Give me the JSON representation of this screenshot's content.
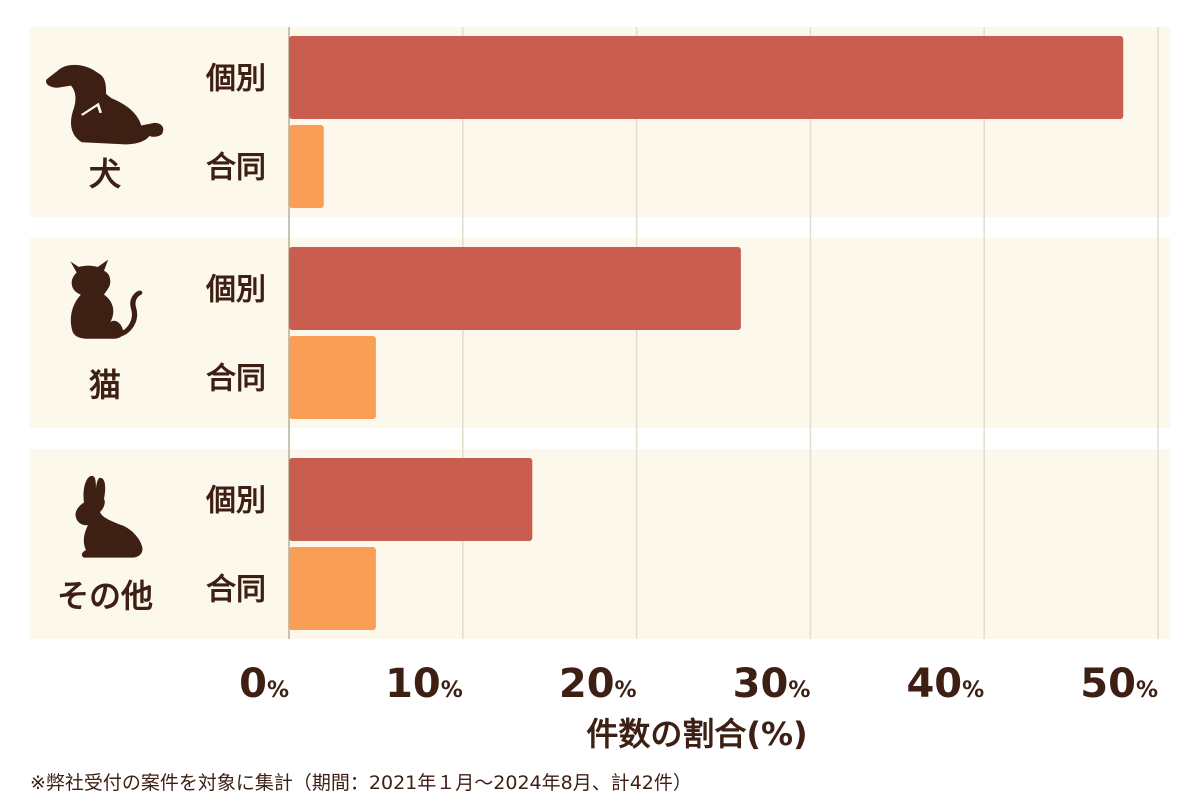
{
  "chart_data": {
    "type": "bar",
    "orientation": "horizontal",
    "xlabel": "件数の割合(%)",
    "x_ticks": [
      "0",
      "10",
      "20",
      "30",
      "40",
      "50"
    ],
    "x_tick_unit": "%",
    "xlim": [
      0,
      50
    ],
    "grid": true,
    "groups": [
      {
        "label": "犬",
        "icon": "dog-icon",
        "bars": [
          {
            "label": "個別",
            "value": 48
          },
          {
            "label": "合同",
            "value": 2
          }
        ]
      },
      {
        "label": "猫",
        "icon": "cat-icon",
        "bars": [
          {
            "label": "個別",
            "value": 26
          },
          {
            "label": "合同",
            "value": 5
          }
        ]
      },
      {
        "label": "その他",
        "icon": "rabbit-icon",
        "bars": [
          {
            "label": "個別",
            "value": 14
          },
          {
            "label": "合同",
            "value": 5
          }
        ]
      }
    ],
    "colors": {
      "個別": "#c95d50",
      "合同": "#f99e55",
      "panel": "#fdf8ec",
      "grid": "#e4dccd",
      "text": "#3d1f14"
    }
  },
  "footnote": "※弊社受付の案件を対象に集計（期間：2021年１月〜2024年8月、計42件）"
}
